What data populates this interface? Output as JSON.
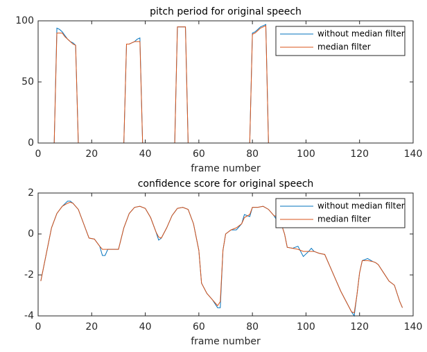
{
  "chart_data": [
    {
      "type": "line",
      "title": "pitch period for original speech",
      "x_label": "frame number",
      "xlim": [
        0,
        140
      ],
      "xticks": [
        0,
        20,
        40,
        60,
        80,
        100,
        120,
        140
      ],
      "ylim": [
        0,
        100
      ],
      "yticks": [
        0,
        50,
        100
      ],
      "grid": false,
      "legend": "northeast",
      "x": [
        1,
        6,
        7,
        8,
        9,
        10,
        11,
        12,
        13,
        14,
        15,
        32,
        33,
        34,
        35,
        36,
        37,
        38,
        39,
        51,
        52,
        53,
        54,
        55,
        56,
        79,
        80,
        81,
        82,
        83,
        84,
        85,
        86,
        136
      ],
      "series": [
        {
          "name": "without median filter",
          "color": "#0072bd",
          "values": [
            0,
            0,
            94,
            93,
            91,
            88,
            85,
            83,
            82,
            80,
            0,
            0,
            81,
            81,
            82,
            83,
            85,
            86,
            0,
            0,
            95,
            95,
            95,
            95,
            0,
            0,
            90,
            91,
            93,
            95,
            96,
            97,
            0,
            0
          ]
        },
        {
          "name": "median filter",
          "color": "#d95319",
          "values": [
            0,
            0,
            90,
            90,
            90,
            87,
            85,
            83,
            81,
            80,
            0,
            0,
            81,
            81,
            82,
            83,
            83,
            83,
            0,
            0,
            95,
            95,
            95,
            95,
            0,
            0,
            89,
            90,
            92,
            94,
            95,
            96,
            0,
            0
          ]
        }
      ]
    },
    {
      "type": "line",
      "title": "confidence score for original speech",
      "x_label": "frame number",
      "xlim": [
        0,
        140
      ],
      "xticks": [
        0,
        20,
        40,
        60,
        80,
        100,
        120,
        140
      ],
      "ylim": [
        -4,
        2
      ],
      "yticks": [
        -4,
        -2,
        0,
        2
      ],
      "grid": false,
      "legend": "northeast",
      "x": [
        1,
        3,
        5,
        7,
        9,
        11,
        12,
        13,
        15,
        17,
        19,
        21,
        23,
        24,
        25,
        26,
        28,
        30,
        32,
        34,
        36,
        38,
        40,
        42,
        44,
        45,
        46,
        48,
        50,
        52,
        54,
        56,
        58,
        60,
        61,
        63,
        65,
        67,
        68,
        69,
        70,
        72,
        74,
        76,
        77,
        79,
        80,
        82,
        84,
        86,
        88,
        89,
        90,
        92,
        93,
        95,
        97,
        99,
        101,
        102,
        103,
        105,
        107,
        109,
        111,
        113,
        115,
        117,
        118,
        119,
        120,
        121,
        123,
        125,
        126,
        127,
        129,
        131,
        133,
        135,
        136
      ],
      "series": [
        {
          "name": "without median filter",
          "color": "#0072bd",
          "values": [
            -2.3,
            -1.0,
            0.3,
            1.0,
            1.35,
            1.6,
            1.6,
            1.5,
            1.2,
            0.5,
            -0.2,
            -0.25,
            -0.6,
            -1.05,
            -1.05,
            -0.75,
            -0.75,
            -0.75,
            0.3,
            1.0,
            1.3,
            1.35,
            1.25,
            0.8,
            0.1,
            -0.3,
            -0.2,
            0.3,
            0.9,
            1.25,
            1.3,
            1.2,
            0.5,
            -0.8,
            -2.4,
            -2.9,
            -3.2,
            -3.6,
            -3.6,
            -0.8,
            0.0,
            0.2,
            0.2,
            0.5,
            0.95,
            0.85,
            1.3,
            1.3,
            1.35,
            1.2,
            0.9,
            0.7,
            0.8,
            0.0,
            -0.65,
            -0.7,
            -0.6,
            -1.1,
            -0.85,
            -0.7,
            -0.85,
            -0.95,
            -1.0,
            -1.6,
            -2.2,
            -2.8,
            -3.3,
            -3.8,
            -4.0,
            -3.0,
            -1.9,
            -1.3,
            -1.2,
            -1.35,
            -1.4,
            -1.5,
            -1.9,
            -2.3,
            -2.5,
            -3.3,
            -3.6
          ]
        },
        {
          "name": "median filter",
          "color": "#d95319",
          "values": [
            -2.3,
            -1.0,
            0.3,
            1.0,
            1.35,
            1.5,
            1.55,
            1.5,
            1.2,
            0.5,
            -0.2,
            -0.25,
            -0.6,
            -0.75,
            -0.75,
            -0.75,
            -0.75,
            -0.75,
            0.3,
            1.0,
            1.3,
            1.35,
            1.25,
            0.8,
            0.1,
            -0.15,
            -0.2,
            0.3,
            0.9,
            1.25,
            1.3,
            1.2,
            0.5,
            -0.8,
            -2.4,
            -2.9,
            -3.2,
            -3.5,
            -3.3,
            -0.8,
            0.0,
            0.2,
            0.3,
            0.5,
            0.8,
            0.95,
            1.3,
            1.3,
            1.35,
            1.2,
            0.9,
            0.85,
            0.8,
            0.0,
            -0.65,
            -0.7,
            -0.75,
            -0.85,
            -0.85,
            -0.85,
            -0.85,
            -0.95,
            -1.0,
            -1.6,
            -2.2,
            -2.8,
            -3.3,
            -3.8,
            -3.85,
            -3.0,
            -1.9,
            -1.3,
            -1.3,
            -1.35,
            -1.4,
            -1.5,
            -1.9,
            -2.3,
            -2.5,
            -3.3,
            -3.6
          ]
        }
      ]
    }
  ]
}
